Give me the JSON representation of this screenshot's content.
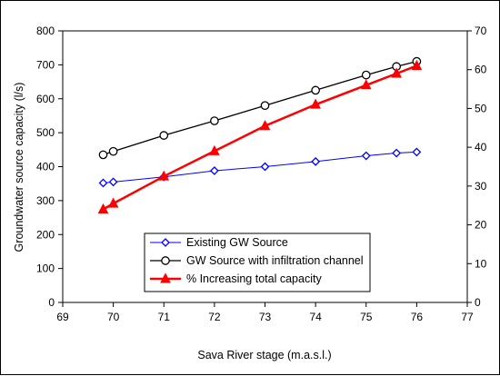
{
  "chart_data": {
    "type": "line",
    "title": "",
    "xlabel": "Sava River stage (m.a.s.l.)",
    "ylabel": "Groundwater source capacity (l/s)",
    "y2label": "",
    "xlim": [
      69,
      77
    ],
    "ylim": [
      0,
      800
    ],
    "y2lim": [
      0,
      70
    ],
    "xticks": [
      69,
      70,
      71,
      72,
      73,
      74,
      75,
      76,
      77
    ],
    "yticks": [
      0,
      100,
      200,
      300,
      400,
      500,
      600,
      700,
      800
    ],
    "y2ticks": [
      0,
      10,
      20,
      30,
      40,
      50,
      60,
      70
    ],
    "grid": false,
    "legend_position": "bottom-right",
    "series": [
      {
        "name": "Existing GW Source",
        "axis": "left",
        "color": "#0000ff",
        "marker": "diamond",
        "x": [
          69.8,
          70,
          71,
          72,
          73,
          74,
          75,
          75.6,
          76
        ],
        "values": [
          352,
          355,
          370,
          388,
          400,
          415,
          432,
          440,
          443
        ]
      },
      {
        "name": "GW Source with infiltration channel",
        "axis": "left",
        "color": "#000000",
        "marker": "circle",
        "x": [
          69.8,
          70,
          71,
          72,
          73,
          74,
          75,
          75.6,
          76
        ],
        "values": [
          435,
          445,
          492,
          535,
          580,
          625,
          670,
          695,
          710
        ]
      },
      {
        "name": "% Increasing total capacity",
        "axis": "right",
        "color": "#ff0000",
        "marker": "triangle",
        "x": [
          69.8,
          70,
          71,
          72,
          73,
          74,
          75,
          75.6,
          76
        ],
        "values": [
          24,
          25.5,
          32.5,
          39,
          45.5,
          51,
          56,
          59,
          61
        ]
      }
    ]
  }
}
